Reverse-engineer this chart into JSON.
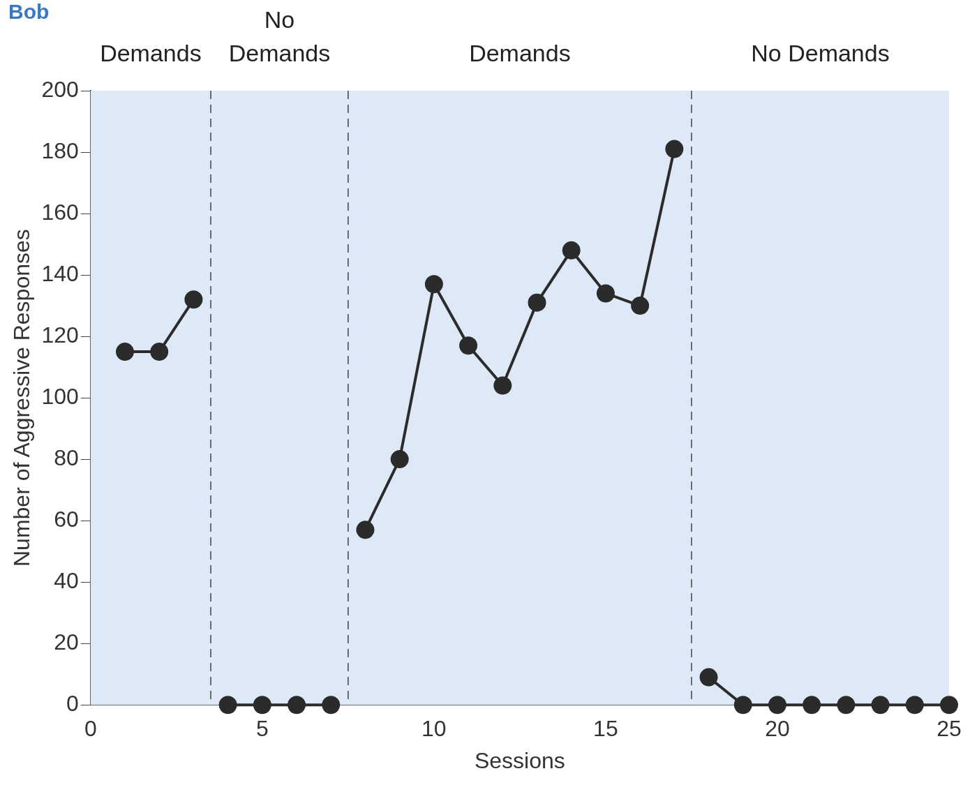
{
  "chart_data": {
    "type": "line",
    "title": "Bob",
    "xlabel": "Sessions",
    "ylabel": "Number of Aggressive Responses",
    "series": [
      {
        "color": "#2b2b2b",
        "x": [
          1,
          2,
          3
        ],
        "values": [
          115,
          115,
          132
        ]
      },
      {
        "color": "#2b2b2b",
        "x": [
          4,
          5,
          6,
          7
        ],
        "values": [
          0,
          0,
          0,
          0
        ]
      },
      {
        "color": "#2b2b2b",
        "x": [
          8,
          9,
          10,
          11,
          12,
          13,
          14,
          15,
          16,
          17
        ],
        "values": [
          57,
          80,
          137,
          117,
          104,
          131,
          148,
          134,
          130,
          181
        ]
      },
      {
        "color": "#2b2b2b",
        "x": [
          18,
          19,
          20,
          21,
          22,
          23,
          24,
          25
        ],
        "values": [
          9,
          0,
          0,
          0,
          0,
          0,
          0,
          0
        ]
      }
    ],
    "xlim": [
      0,
      25
    ],
    "xticks": [
      0,
      5,
      10,
      15,
      20,
      25
    ],
    "ylim": [
      0,
      200
    ],
    "yticks": [
      0,
      20,
      40,
      60,
      80,
      100,
      120,
      140,
      160,
      180,
      200
    ],
    "bands": [
      {
        "axis": "x",
        "from": 0,
        "to": 3.5,
        "label": "Demands",
        "color": "#dde9f6"
      },
      {
        "axis": "x",
        "from": 3.5,
        "to": 7.5,
        "label": "No Demands",
        "color": "#dde9f6"
      },
      {
        "axis": "x",
        "from": 7.5,
        "to": 17.5,
        "label": "Demands",
        "color": "#dde9f6"
      },
      {
        "axis": "x",
        "from": 17.5,
        "to": 25,
        "label": "No Demands",
        "color": "#dde9f6"
      }
    ],
    "ref_lines": [
      {
        "axis": "x",
        "value": 3.5,
        "line_style": "dashed",
        "color": "#444444"
      },
      {
        "axis": "x",
        "value": 7.5,
        "line_style": "dashed",
        "color": "#444444"
      },
      {
        "axis": "x",
        "value": 17.5,
        "line_style": "dashed",
        "color": "#444444"
      }
    ],
    "grid": false,
    "legend": false,
    "marker": "circle",
    "line_style": "solid"
  }
}
